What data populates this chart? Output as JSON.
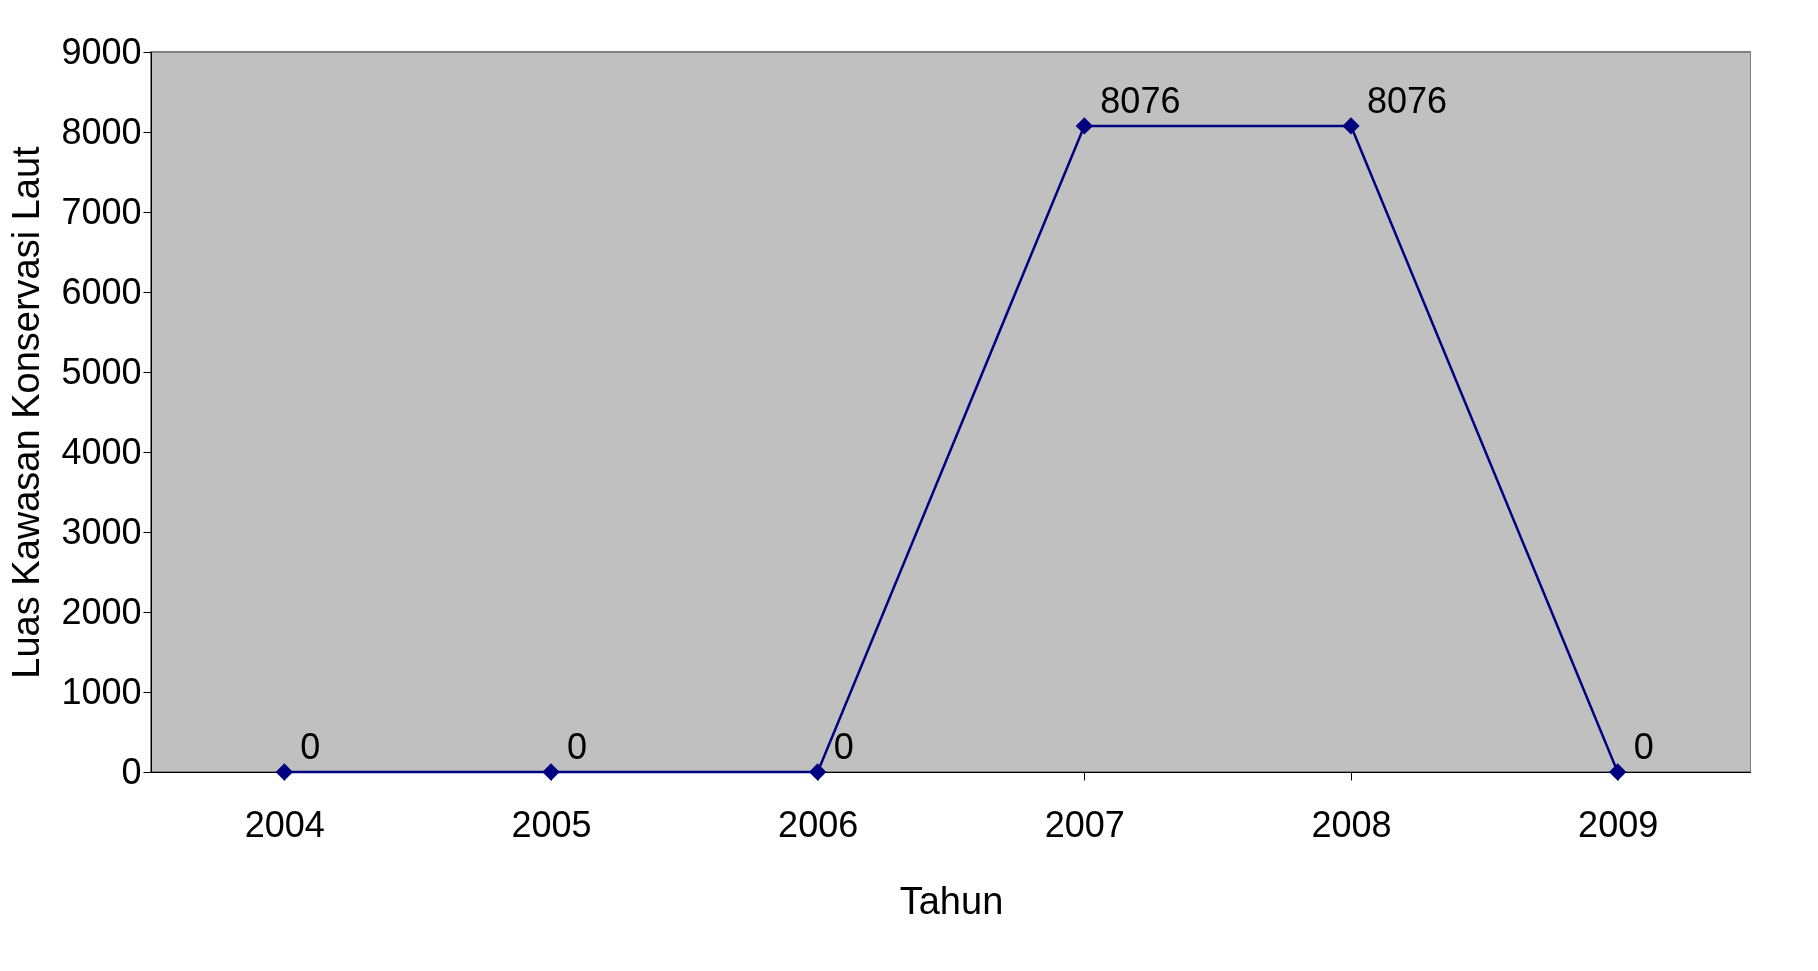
{
  "chart_data": {
    "type": "line",
    "xlabel": "Tahun",
    "ylabel": "Luas Kawasan Konservasi Laut",
    "categories": [
      "2004",
      "2005",
      "2006",
      "2007",
      "2008",
      "2009"
    ],
    "series": [
      {
        "color": "#000080",
        "values": [
          0,
          0,
          0,
          8076,
          8076,
          0
        ]
      }
    ],
    "ylim": [
      0,
      9000
    ],
    "yticks": [
      0,
      1000,
      2000,
      3000,
      4000,
      5000,
      6000,
      7000,
      8000,
      9000
    ],
    "grid": false,
    "legend": false,
    "marker": "diamond",
    "line_style": "solid",
    "data_labels": true
  }
}
